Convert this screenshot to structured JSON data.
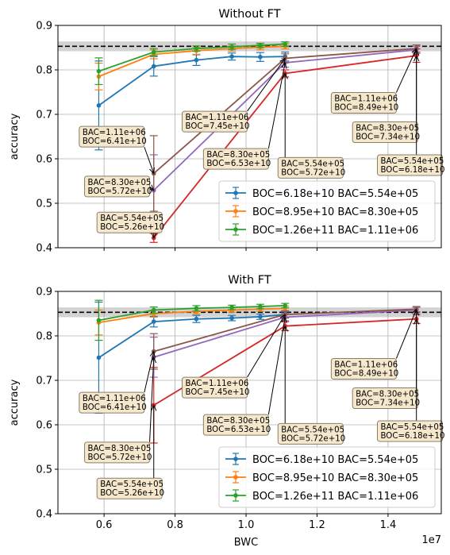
{
  "figure": {
    "x_label": "BWC",
    "x_offset_text": "1e7",
    "y_label": "accuracy"
  },
  "chart_data": [
    {
      "type": "line",
      "title": "Without FT",
      "xlabel": "",
      "ylabel": "accuracy",
      "xlim": [
        4700000.0,
        15500000.0
      ],
      "ylim": [
        0.4,
        0.9
      ],
      "xticks": [
        6000000.0,
        8000000.0,
        10000000.0,
        12000000.0,
        14000000.0
      ],
      "xtick_labels": [],
      "yticks": [
        0.4,
        0.5,
        0.6,
        0.7,
        0.8,
        0.9
      ],
      "ytick_labels": [
        "0.4",
        "0.5",
        "0.6",
        "0.7",
        "0.8",
        "0.9"
      ],
      "grid": true,
      "reference_line": 0.853,
      "reference_band": [
        0.842,
        0.864
      ],
      "legend_position": "lower-right",
      "series": [
        {
          "name": "BOC=6.18e+10 BAC=5.54e+05",
          "color": "#1f77b4",
          "legend": true,
          "x": [
            5850000.0,
            7400000.0,
            8600000.0,
            9600000.0,
            10400000.0,
            11100000.0
          ],
          "y": [
            0.72,
            0.808,
            0.822,
            0.83,
            0.829,
            0.83
          ],
          "err": [
            0.1,
            0.022,
            0.012,
            0.008,
            0.01,
            0.01
          ]
        },
        {
          "name": "BOC=8.95e+10 BAC=8.30e+05",
          "color": "#ff7f0e",
          "legend": true,
          "x": [
            5850000.0,
            7400000.0,
            8600000.0,
            9600000.0,
            10400000.0,
            11100000.0
          ],
          "y": [
            0.785,
            0.835,
            0.843,
            0.848,
            0.851,
            0.853
          ],
          "err": [
            0.03,
            0.01,
            0.008,
            0.006,
            0.006,
            0.006
          ]
        },
        {
          "name": "BOC=1.26e+11 BAC=1.11e+06",
          "color": "#2ca02c",
          "legend": true,
          "x": [
            5850000.0,
            7400000.0,
            8600000.0,
            9600000.0,
            10400000.0,
            11100000.0
          ],
          "y": [
            0.797,
            0.84,
            0.848,
            0.852,
            0.855,
            0.858
          ],
          "err": [
            0.03,
            0.008,
            0.006,
            0.006,
            0.005,
            0.005
          ]
        },
        {
          "name": "",
          "color": "#d62728",
          "legend": false,
          "x": [
            7400000.0,
            11100000.0,
            14800000.0
          ],
          "y": [
            0.422,
            0.792,
            0.832
          ],
          "err": [
            0.01,
            0.008,
            0.015
          ]
        },
        {
          "name": "",
          "color": "#9467bd",
          "legend": false,
          "x": [
            7400000.0,
            11100000.0,
            14800000.0
          ],
          "y": [
            0.529,
            0.816,
            0.845
          ],
          "err": [
            0.08,
            0.01,
            0.008
          ]
        },
        {
          "name": "",
          "color": "#8c564b",
          "legend": false,
          "x": [
            7400000.0,
            11100000.0,
            14800000.0
          ],
          "y": [
            0.567,
            0.826,
            0.848
          ],
          "err": [
            0.085,
            0.01,
            0.008
          ]
        }
      ],
      "annotations": [
        {
          "line1": "BAC=1.11e+06",
          "line2": "BOC=6.41e+10",
          "at": [
            5300000.0,
            0.673
          ],
          "target": [
            7400000.0,
            0.567
          ]
        },
        {
          "line1": "BAC=8.30e+05",
          "line2": "BOC=5.72e+10",
          "at": [
            5450000.0,
            0.561
          ],
          "target": [
            7400000.0,
            0.529
          ]
        },
        {
          "line1": "BAC=5.54e+05",
          "line2": "BOC=5.26e+10",
          "at": [
            5800000.0,
            0.48
          ],
          "target": [
            7400000.0,
            0.422
          ]
        },
        {
          "line1": "BAC=1.11e+06",
          "line2": "BOC=7.45e+10",
          "at": [
            8200000.0,
            0.707
          ],
          "target": [
            11100000.0,
            0.826
          ]
        },
        {
          "line1": "BAC=8.30e+05",
          "line2": "BOC=6.53e+10",
          "at": [
            8800000.0,
            0.623
          ],
          "target": [
            11100000.0,
            0.816
          ]
        },
        {
          "line1": "BAC=5.54e+05",
          "line2": "BOC=5.72e+10",
          "at": [
            10900000.0,
            0.603
          ],
          "target": [
            11100000.0,
            0.792
          ]
        },
        {
          "line1": "BAC=1.11e+06",
          "line2": "BOC=8.49e+10",
          "at": [
            12400000.0,
            0.749
          ],
          "target": [
            14800000.0,
            0.848
          ]
        },
        {
          "line1": "BAC=8.30e+05",
          "line2": "BOC=7.34e+10",
          "at": [
            13000000.0,
            0.683
          ],
          "target": [
            14800000.0,
            0.845
          ]
        },
        {
          "line1": "BAC=5.54e+05",
          "line2": "BOC=6.18e+10",
          "at": [
            13700000.0,
            0.609
          ],
          "target": [
            14800000.0,
            0.832
          ]
        }
      ]
    },
    {
      "type": "line",
      "title": "With FT",
      "xlabel": "BWC",
      "ylabel": "accuracy",
      "xlim": [
        4700000.0,
        15500000.0
      ],
      "ylim": [
        0.4,
        0.9
      ],
      "xticks": [
        6000000.0,
        8000000.0,
        10000000.0,
        12000000.0,
        14000000.0
      ],
      "xtick_labels": [
        "0.6",
        "0.8",
        "1.0",
        "1.2",
        "1.4"
      ],
      "yticks": [
        0.4,
        0.5,
        0.6,
        0.7,
        0.8,
        0.9
      ],
      "ytick_labels": [
        "0.4",
        "0.5",
        "0.6",
        "0.7",
        "0.8",
        "0.9"
      ],
      "grid": true,
      "reference_line": 0.853,
      "reference_band": [
        0.842,
        0.864
      ],
      "legend_position": "lower-right",
      "series": [
        {
          "name": "BOC=6.18e+10 BAC=5.54e+05",
          "color": "#1f77b4",
          "legend": true,
          "x": [
            5850000.0,
            7400000.0,
            8600000.0,
            9600000.0,
            10400000.0,
            11100000.0
          ],
          "y": [
            0.751,
            0.832,
            0.838,
            0.84,
            0.843,
            0.848
          ],
          "err": [
            0.125,
            0.012,
            0.008,
            0.006,
            0.006,
            0.006
          ]
        },
        {
          "name": "BOC=8.95e+10 BAC=8.30e+05",
          "color": "#ff7f0e",
          "legend": true,
          "x": [
            5850000.0,
            7400000.0,
            8600000.0,
            9600000.0,
            10400000.0,
            11100000.0
          ],
          "y": [
            0.83,
            0.85,
            0.855,
            0.858,
            0.86,
            0.862
          ],
          "err": [
            0.028,
            0.008,
            0.006,
            0.005,
            0.005,
            0.005
          ]
        },
        {
          "name": "BOC=1.26e+11 BAC=1.11e+06",
          "color": "#2ca02c",
          "legend": true,
          "x": [
            5850000.0,
            7400000.0,
            8600000.0,
            9600000.0,
            10400000.0,
            11100000.0
          ],
          "y": [
            0.835,
            0.858,
            0.862,
            0.864,
            0.866,
            0.868
          ],
          "err": [
            0.045,
            0.007,
            0.006,
            0.005,
            0.005,
            0.005
          ]
        },
        {
          "name": "",
          "color": "#d62728",
          "legend": false,
          "x": [
            7400000.0,
            11100000.0,
            14800000.0
          ],
          "y": [
            0.644,
            0.822,
            0.838
          ],
          "err": [
            0.085,
            0.01,
            0.01
          ]
        },
        {
          "name": "",
          "color": "#9467bd",
          "legend": false,
          "x": [
            7400000.0,
            11100000.0,
            14800000.0
          ],
          "y": [
            0.752,
            0.842,
            0.858
          ],
          "err": [
            0.045,
            0.008,
            0.006
          ]
        },
        {
          "name": "",
          "color": "#8c564b",
          "legend": false,
          "x": [
            7400000.0,
            11100000.0,
            14800000.0
          ],
          "y": [
            0.765,
            0.848,
            0.86
          ],
          "err": [
            0.04,
            0.008,
            0.006
          ]
        }
      ],
      "annotations": [
        {
          "line1": "BAC=1.11e+06",
          "line2": "BOC=6.41e+10",
          "at": [
            5300000.0,
            0.673
          ],
          "target": [
            7400000.0,
            0.765
          ]
        },
        {
          "line1": "BAC=8.30e+05",
          "line2": "BOC=5.72e+10",
          "at": [
            5450000.0,
            0.561
          ],
          "target": [
            7400000.0,
            0.752
          ]
        },
        {
          "line1": "BAC=5.54e+05",
          "line2": "BOC=5.26e+10",
          "at": [
            5800000.0,
            0.48
          ],
          "target": [
            7400000.0,
            0.644
          ]
        },
        {
          "line1": "BAC=1.11e+06",
          "line2": "BOC=7.45e+10",
          "at": [
            8200000.0,
            0.707
          ],
          "target": [
            11100000.0,
            0.848
          ]
        },
        {
          "line1": "BAC=8.30e+05",
          "line2": "BOC=6.53e+10",
          "at": [
            8800000.0,
            0.623
          ],
          "target": [
            11100000.0,
            0.842
          ]
        },
        {
          "line1": "BAC=5.54e+05",
          "line2": "BOC=5.72e+10",
          "at": [
            10900000.0,
            0.603
          ],
          "target": [
            11100000.0,
            0.822
          ]
        },
        {
          "line1": "BAC=1.11e+06",
          "line2": "BOC=8.49e+10",
          "at": [
            12400000.0,
            0.749
          ],
          "target": [
            14800000.0,
            0.86
          ]
        },
        {
          "line1": "BAC=8.30e+05",
          "line2": "BOC=7.34e+10",
          "at": [
            13000000.0,
            0.683
          ],
          "target": [
            14800000.0,
            0.858
          ]
        },
        {
          "line1": "BAC=5.54e+05",
          "line2": "BOC=6.18e+10",
          "at": [
            13700000.0,
            0.609
          ],
          "target": [
            14800000.0,
            0.838
          ]
        }
      ]
    }
  ]
}
